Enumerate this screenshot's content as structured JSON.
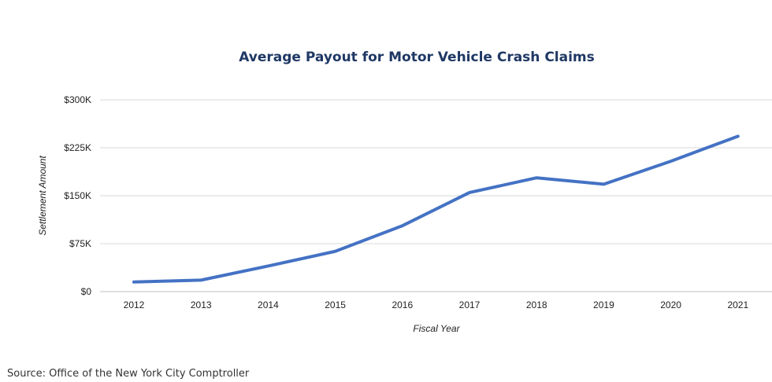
{
  "colors": {
    "line": "#4472c4",
    "title": "#1f3864",
    "grid": "#d9d9d9"
  },
  "chart_data": {
    "type": "line",
    "title": "Average Payout for Motor Vehicle Crash Claims",
    "xlabel": "Fiscal Year",
    "ylabel": "Settlement Amount",
    "categories": [
      "2012",
      "2013",
      "2014",
      "2015",
      "2016",
      "2017",
      "2018",
      "2019",
      "2020",
      "2021"
    ],
    "series": [
      {
        "values": [
          15000,
          18000,
          40000,
          63000,
          103000,
          155000,
          178000,
          168000,
          204000,
          243000
        ]
      }
    ],
    "ylim": [
      0,
      300000
    ],
    "yticks": [
      0,
      75000,
      150000,
      225000,
      300000
    ],
    "ytick_labels": [
      "$0",
      "$75K",
      "$150K",
      "$225K",
      "$300K"
    ],
    "grid": true
  },
  "source": "Source: Office of the New York City Comptroller"
}
